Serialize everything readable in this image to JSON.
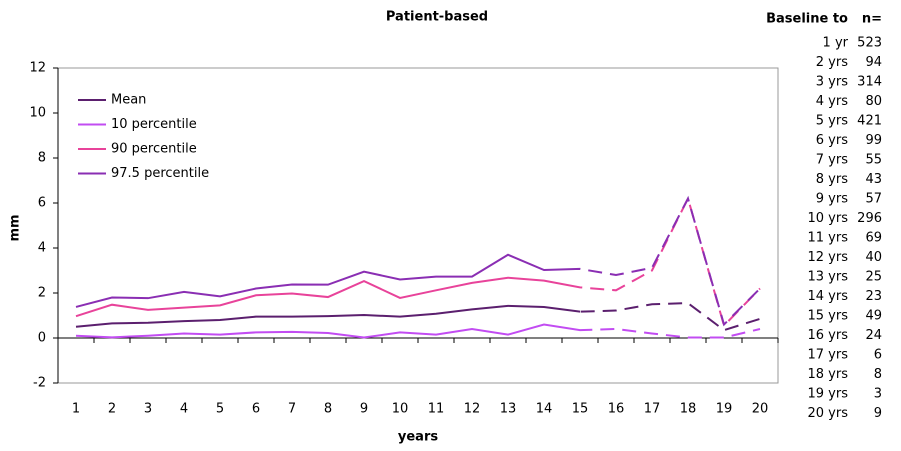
{
  "chart_data": {
    "type": "line",
    "title": "Patient-based",
    "x_label": "years",
    "y_label": "mm",
    "categories": [
      "1",
      "2",
      "3",
      "4",
      "5",
      "6",
      "7",
      "8",
      "9",
      "10",
      "11",
      "12",
      "13",
      "14",
      "15",
      "16",
      "17",
      "18",
      "19",
      "20"
    ],
    "series": [
      {
        "name": "Mean",
        "color": "#5b1f6e",
        "values": [
          0.5,
          0.65,
          0.68,
          0.75,
          0.8,
          0.95,
          0.95,
          0.97,
          1.02,
          0.95,
          1.08,
          1.27,
          1.43,
          1.38,
          1.17,
          1.22,
          1.5,
          1.55,
          0.35,
          0.85
        ]
      },
      {
        "name": "10 percentile",
        "color": "#c24cf2",
        "values": [
          0.1,
          0.03,
          0.1,
          0.2,
          0.15,
          0.25,
          0.27,
          0.22,
          0.02,
          0.25,
          0.15,
          0.4,
          0.15,
          0.6,
          0.35,
          0.4,
          0.2,
          0.02,
          0.02,
          0.4
        ]
      },
      {
        "name": "90 percentile",
        "color": "#e8439a",
        "values": [
          0.97,
          1.48,
          1.25,
          1.35,
          1.45,
          1.9,
          1.98,
          1.82,
          2.53,
          1.78,
          2.12,
          2.45,
          2.68,
          2.55,
          2.25,
          2.12,
          3.0,
          6.2,
          0.55,
          2.2
        ]
      },
      {
        "name": "97.5 percentile",
        "color": "#8a2eb3",
        "values": [
          1.38,
          1.8,
          1.77,
          2.05,
          1.85,
          2.2,
          2.38,
          2.37,
          2.95,
          2.6,
          2.73,
          2.73,
          3.7,
          3.02,
          3.07,
          2.8,
          3.12,
          6.2,
          0.6,
          2.2
        ]
      }
    ],
    "ylim": [
      -2,
      12
    ],
    "yticks": [
      -2,
      0,
      2,
      4,
      6,
      8,
      10,
      12
    ],
    "grid": false,
    "legend": "upper left"
  },
  "table": {
    "headers": [
      "Baseline to",
      "n="
    ],
    "rows": [
      [
        "1 yr",
        "523"
      ],
      [
        "2 yrs",
        "94"
      ],
      [
        "3 yrs",
        "314"
      ],
      [
        "4 yrs",
        "80"
      ],
      [
        "5 yrs",
        "421"
      ],
      [
        "6 yrs",
        "99"
      ],
      [
        "7 yrs",
        "55"
      ],
      [
        "8 yrs",
        "43"
      ],
      [
        "9 yrs",
        "57"
      ],
      [
        "10 yrs",
        "296"
      ],
      [
        "11 yrs",
        "69"
      ],
      [
        "12 yrs",
        "40"
      ],
      [
        "13 yrs",
        "25"
      ],
      [
        "14 yrs",
        "23"
      ],
      [
        "15 yrs",
        "49"
      ],
      [
        "16 yrs",
        "24"
      ],
      [
        "17 yrs",
        "6"
      ],
      [
        "18 yrs",
        "8"
      ],
      [
        "19 yrs",
        "3"
      ],
      [
        "20 yrs",
        "9"
      ]
    ]
  }
}
